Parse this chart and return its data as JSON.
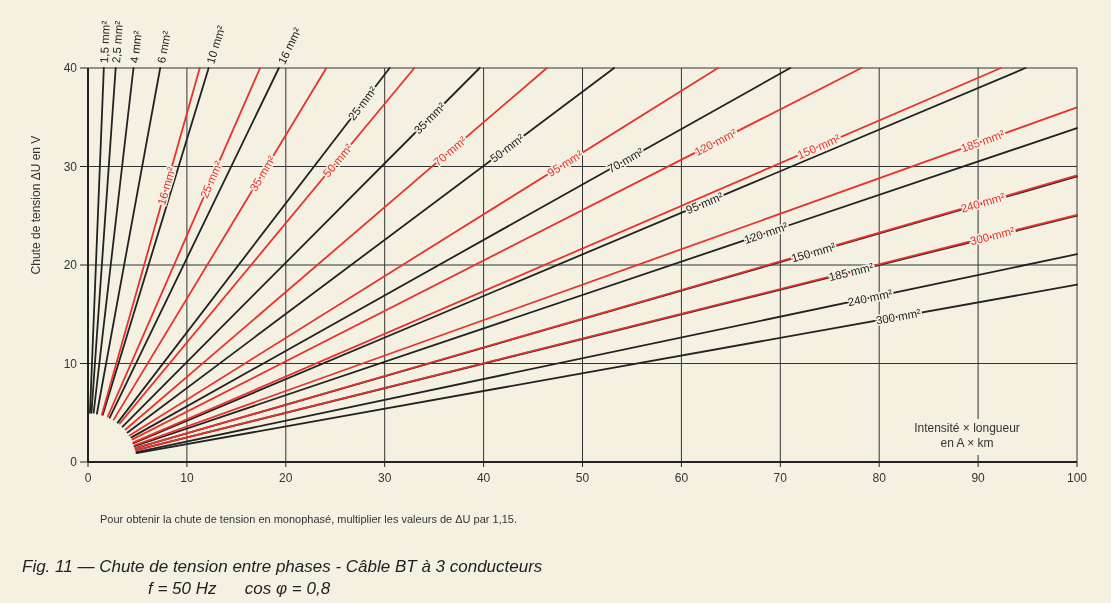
{
  "chart_data": {
    "type": "line",
    "title": "Fig. 11 — Chute de tension entre phases - Câble BT à 3 conducteurs",
    "subtitle": "f = 50 Hz      cos φ = 0,8",
    "xlabel": "Intensité × longueur\nen A × km",
    "ylabel": "Chute de tension ΔU en V",
    "annotations": [
      "Pour obtenir la chute de tension en monophasé, multiplier les valeurs de ΔU par 1,15."
    ],
    "xlim": [
      0,
      100
    ],
    "ylim": [
      0,
      40
    ],
    "xticks": [
      0,
      10,
      20,
      30,
      40,
      50,
      60,
      70,
      80,
      90,
      100
    ],
    "yticks": [
      0,
      10,
      20,
      30,
      40
    ],
    "grid": true,
    "legend": false,
    "marker": "none",
    "line_style": "solid",
    "series": [
      {
        "name": "1,5 mm²",
        "color": "#222222",
        "x": [
          0.2,
          1.6
        ],
        "values": [
          5.0,
          40
        ]
      },
      {
        "name": "2,5 mm²",
        "color": "#222222",
        "x": [
          0.35,
          2.8
        ],
        "values": [
          5.0,
          40
        ]
      },
      {
        "name": "4 mm²",
        "color": "#222222",
        "x": [
          0.57,
          4.6
        ],
        "values": [
          5.0,
          40
        ]
      },
      {
        "name": "6 mm²",
        "color": "#222222",
        "x": [
          0.9,
          7.3
        ],
        "values": [
          4.9,
          40
        ]
      },
      {
        "name": "10 mm²",
        "color": "#222222",
        "x": [
          1.5,
          12.2
        ],
        "values": [
          4.8,
          40
        ]
      },
      {
        "name": "16 mm²",
        "color": "#222222",
        "x": [
          2.2,
          19.3
        ],
        "values": [
          4.5,
          40
        ]
      },
      {
        "name": "25 mm²",
        "color": "#222222",
        "x": [
          3.0,
          30.5
        ],
        "values": [
          4.0,
          40
        ]
      },
      {
        "name": "35 mm²",
        "color": "#222222",
        "x": [
          3.5,
          39.6
        ],
        "values": [
          3.6,
          40
        ]
      },
      {
        "name": "50 mm²",
        "color": "#222222",
        "x": [
          4.0,
          53.2
        ],
        "values": [
          3.0,
          40
        ]
      },
      {
        "name": "70 mm²",
        "color": "#222222",
        "x": [
          4.4,
          71
        ],
        "values": [
          2.5,
          40
        ]
      },
      {
        "name": "95 mm²",
        "color": "#222222",
        "x": [
          4.6,
          94.8
        ],
        "values": [
          1.9,
          40
        ]
      },
      {
        "name": "120 mm²",
        "color": "#222222",
        "x": [
          4.7,
          100
        ],
        "values": [
          1.6,
          33.9
        ]
      },
      {
        "name": "150 mm²",
        "color": "#222222",
        "x": [
          4.8,
          100
        ],
        "values": [
          1.4,
          29.0
        ]
      },
      {
        "name": "185 mm²",
        "color": "#222222",
        "x": [
          4.85,
          100
        ],
        "values": [
          1.2,
          25.0
        ]
      },
      {
        "name": "240 mm²",
        "color": "#222222",
        "x": [
          4.9,
          100
        ],
        "values": [
          1.0,
          21.1
        ]
      },
      {
        "name": "300 mm²",
        "color": "#222222",
        "x": [
          4.9,
          100
        ],
        "values": [
          0.9,
          18.0
        ]
      },
      {
        "name": "16 mm²",
        "color": "#e8322e",
        "x": [
          1.4,
          11.3
        ],
        "values": [
          4.8,
          40
        ]
      },
      {
        "name": "25 mm²",
        "color": "#e8322e",
        "x": [
          2.0,
          17.4
        ],
        "values": [
          4.6,
          40
        ]
      },
      {
        "name": "35 mm²",
        "color": "#e8322e",
        "x": [
          2.6,
          24.1
        ],
        "values": [
          4.3,
          40
        ]
      },
      {
        "name": "50 mm²",
        "color": "#e8322e",
        "x": [
          3.2,
          33.0
        ],
        "values": [
          3.9,
          40
        ]
      },
      {
        "name": "70 mm²",
        "color": "#e8322e",
        "x": [
          3.8,
          46.4
        ],
        "values": [
          3.3,
          40
        ]
      },
      {
        "name": "95 mm²",
        "color": "#e8322e",
        "x": [
          4.2,
          63.7
        ],
        "values": [
          2.7,
          40
        ]
      },
      {
        "name": "120 mm²",
        "color": "#e8322e",
        "x": [
          4.5,
          78.2
        ],
        "values": [
          2.3,
          40
        ]
      },
      {
        "name": "150 mm²",
        "color": "#e8322e",
        "x": [
          4.6,
          92.3
        ],
        "values": [
          2.0,
          40
        ]
      },
      {
        "name": "185 mm²",
        "color": "#e8322e",
        "x": [
          4.7,
          100
        ],
        "values": [
          1.7,
          36.0
        ]
      },
      {
        "name": "240 mm²",
        "color": "#e8322e",
        "x": [
          4.8,
          100
        ],
        "values": [
          1.4,
          29.1
        ]
      },
      {
        "name": "300 mm²",
        "color": "#e8322e",
        "x": [
          4.85,
          100
        ],
        "values": [
          1.2,
          25.1
        ]
      }
    ]
  }
}
